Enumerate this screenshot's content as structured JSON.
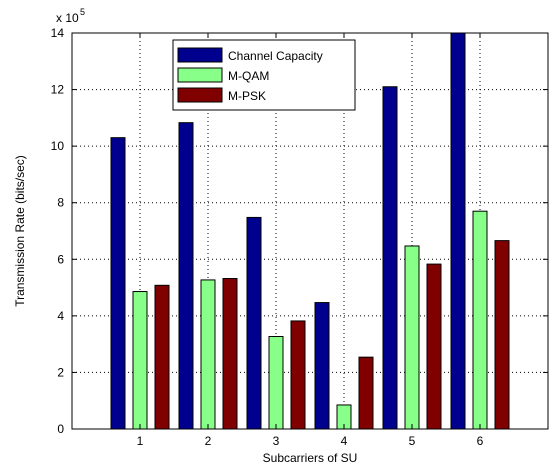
{
  "chart_data": {
    "type": "bar",
    "title": "",
    "xlabel": "Subcarriers of SU",
    "ylabel": "Transmission Rate (bits/sec)",
    "y_scale_label": "x 10",
    "y_scale_exponent": "5",
    "y_tick_labels": [
      "0",
      "2",
      "4",
      "6",
      "8",
      "10",
      "12",
      "14"
    ],
    "categories": [
      "1",
      "2",
      "3",
      "4",
      "5",
      "6"
    ],
    "ylim": [
      0,
      1400000
    ],
    "grid": true,
    "legend_position": "top-left",
    "series": [
      {
        "name": "Channel Capacity",
        "color": "#00008f",
        "values": [
          1030000,
          1083000,
          748000,
          447000,
          1210000,
          1400000
        ]
      },
      {
        "name": "M-QAM",
        "color": "#88ff88",
        "values": [
          486000,
          527000,
          327000,
          85000,
          647000,
          770000
        ]
      },
      {
        "name": "M-PSK",
        "color": "#800000",
        "values": [
          508000,
          532000,
          382000,
          254000,
          583000,
          666000
        ]
      }
    ]
  }
}
